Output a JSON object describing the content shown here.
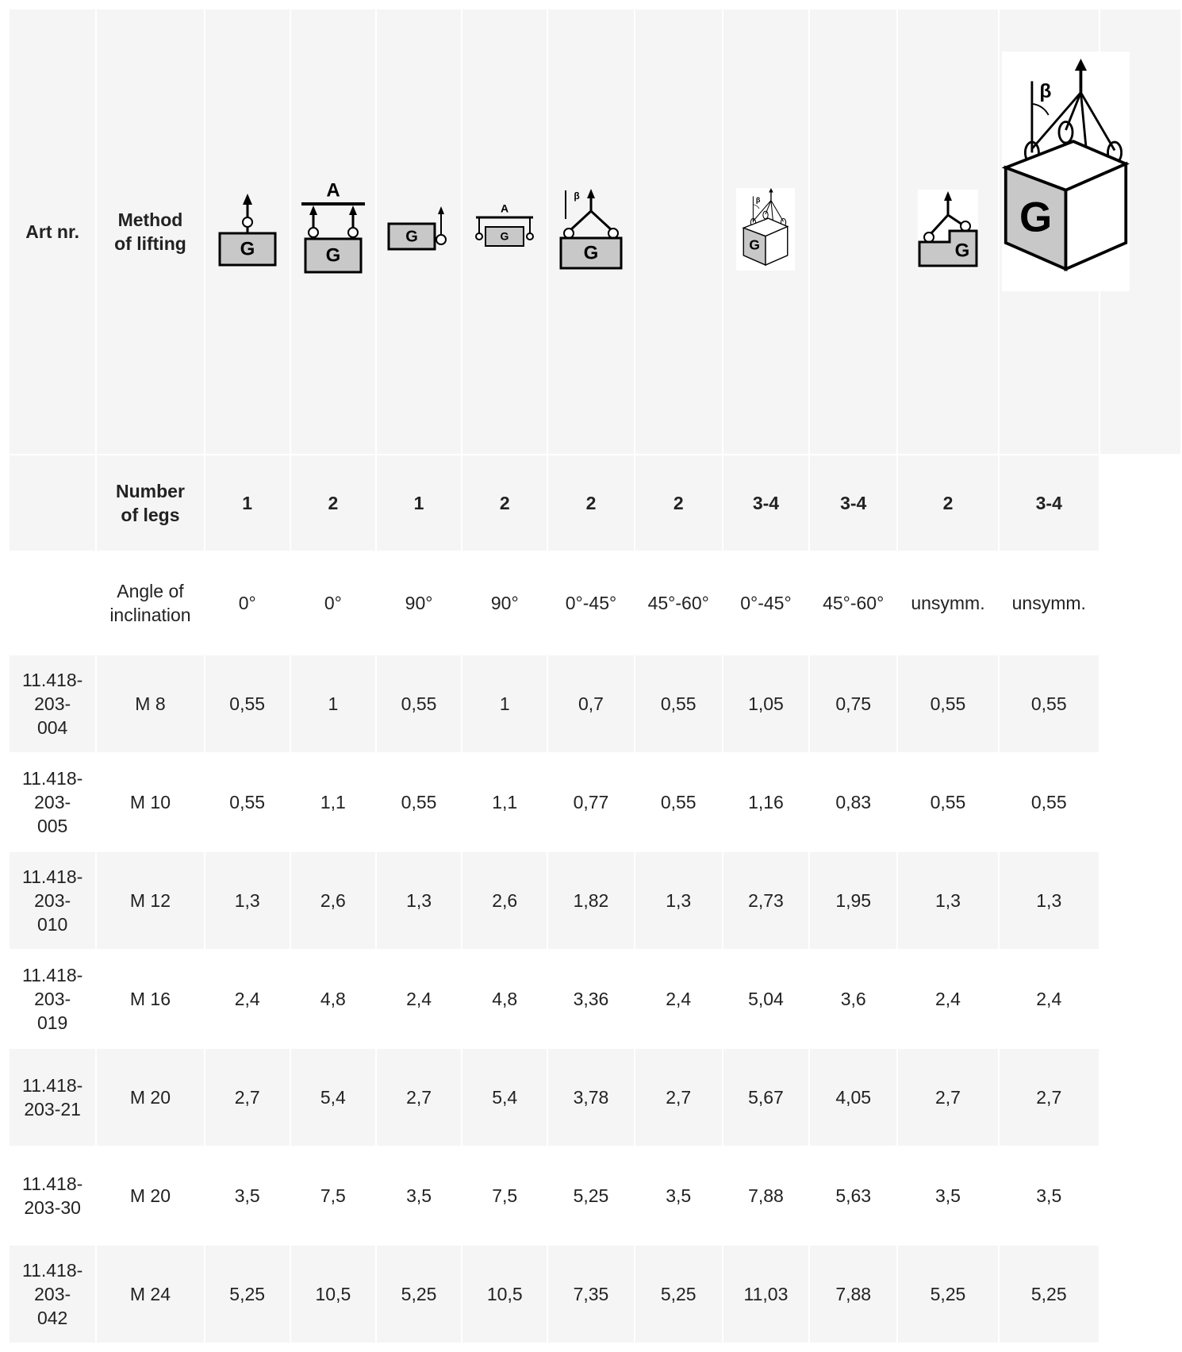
{
  "icons": {
    "load": "G",
    "beam": "A",
    "angle": "β"
  },
  "header": {
    "art": "Art nr.",
    "method": "Method of lifting"
  },
  "legs": {
    "label": "Number of legs",
    "values": [
      "1",
      "2",
      "1",
      "2",
      "2",
      "2",
      "3-4",
      "3-4",
      "2",
      "3-4"
    ]
  },
  "angle": {
    "label": "Angle of inclination",
    "values": [
      "0°",
      "0°",
      "90°",
      "90°",
      "0°-45°",
      "45°-60°",
      "0°-45°",
      "45°-60°",
      "unsymm.",
      "unsymm."
    ]
  },
  "rows": [
    {
      "art": "11.418-203-004",
      "size": "M 8",
      "values": [
        "0,55",
        "1",
        "0,55",
        "1",
        "0,7",
        "0,55",
        "1,05",
        "0,75",
        "0,55",
        "0,55"
      ]
    },
    {
      "art": "11.418-203-005",
      "size": "M 10",
      "values": [
        "0,55",
        "1,1",
        "0,55",
        "1,1",
        "0,77",
        "0,55",
        "1,16",
        "0,83",
        "0,55",
        "0,55"
      ]
    },
    {
      "art": "11.418-203-010",
      "size": "M 12",
      "values": [
        "1,3",
        "2,6",
        "1,3",
        "2,6",
        "1,82",
        "1,3",
        "2,73",
        "1,95",
        "1,3",
        "1,3"
      ]
    },
    {
      "art": "11.418-203-019",
      "size": "M 16",
      "values": [
        "2,4",
        "4,8",
        "2,4",
        "4,8",
        "3,36",
        "2,4",
        "5,04",
        "3,6",
        "2,4",
        "2,4"
      ]
    },
    {
      "art": "11.418-203-21",
      "size": "M 20",
      "values": [
        "2,7",
        "5,4",
        "2,7",
        "5,4",
        "3,78",
        "2,7",
        "5,67",
        "4,05",
        "2,7",
        "2,7"
      ]
    },
    {
      "art": "11.418-203-30",
      "size": "M 20",
      "values": [
        "3,5",
        "7,5",
        "3,5",
        "7,5",
        "5,25",
        "3,5",
        "7,88",
        "5,63",
        "3,5",
        "3,5"
      ]
    },
    {
      "art": "11.418-203-042",
      "size": "M 24",
      "values": [
        "5,25",
        "10,5",
        "5,25",
        "10,5",
        "7,35",
        "5,25",
        "11,03",
        "7,88",
        "5,25",
        "5,25"
      ]
    }
  ]
}
